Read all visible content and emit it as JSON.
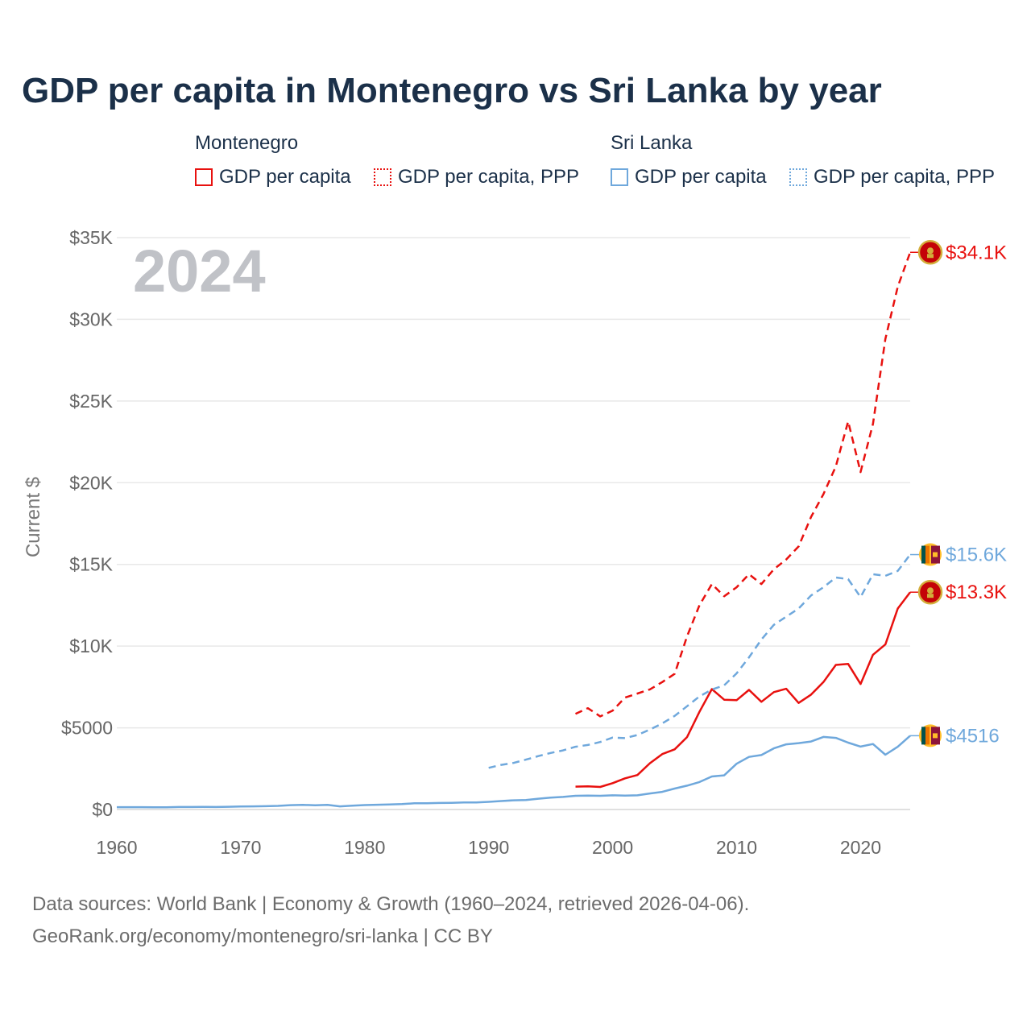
{
  "title": "GDP per capita in Montenegro vs Sri Lanka by year",
  "legend": {
    "groups": [
      {
        "name": "Montenegro",
        "color": "#e8110f",
        "items": [
          {
            "label": "GDP per capita",
            "style": "solid"
          },
          {
            "label": "GDP per capita, PPP",
            "style": "dotted"
          }
        ]
      },
      {
        "name": "Sri Lanka",
        "color": "#6fa8dc",
        "items": [
          {
            "label": "GDP per capita",
            "style": "solid"
          },
          {
            "label": "GDP per capita, PPP",
            "style": "dotted"
          }
        ]
      }
    ]
  },
  "year_watermark": "2024",
  "footer": {
    "line1": "Data sources: World Bank | Economy & Growth (1960–2024, retrieved 2026-04-06).",
    "line2": "GeoRank.org/economy/montenegro/sri-lanka | CC BY"
  },
  "chart_data": {
    "type": "line",
    "title": "GDP per capita in Montenegro vs Sri Lanka by year",
    "xlabel": "",
    "ylabel": "Current $",
    "xlim": [
      1960,
      2024
    ],
    "ylim": [
      0,
      35000
    ],
    "x_ticks": [
      "1960",
      "1970",
      "1980",
      "1990",
      "2000",
      "2010",
      "2020"
    ],
    "x_tick_values": [
      1960,
      1970,
      1980,
      1990,
      2000,
      2010,
      2020
    ],
    "y_ticks": [
      "$0",
      "$5000",
      "$10K",
      "$15K",
      "$20K",
      "$25K",
      "$30K",
      "$35K"
    ],
    "y_tick_values": [
      0,
      5000,
      10000,
      15000,
      20000,
      25000,
      30000,
      35000
    ],
    "grid": true,
    "series": [
      {
        "name": "Montenegro – GDP per capita",
        "country": "Montenegro",
        "metric": "GDP per capita",
        "color": "#e8110f",
        "dash": "solid",
        "end_label": "$13.3K",
        "x": [
          1997,
          1998,
          1999,
          2000,
          2001,
          2002,
          2003,
          2004,
          2005,
          2006,
          2007,
          2008,
          2009,
          2010,
          2011,
          2012,
          2013,
          2014,
          2015,
          2016,
          2017,
          2018,
          2019,
          2020,
          2021,
          2022,
          2023,
          2024
        ],
        "values": [
          1400,
          1420,
          1380,
          1610,
          1910,
          2110,
          2830,
          3390,
          3680,
          4430,
          5980,
          7370,
          6720,
          6690,
          7320,
          6590,
          7180,
          7390,
          6520,
          7030,
          7800,
          8850,
          8910,
          7680,
          9470,
          10100,
          12300,
          13300
        ]
      },
      {
        "name": "Montenegro – GDP per capita, PPP",
        "country": "Montenegro",
        "metric": "GDP per capita, PPP",
        "color": "#e8110f",
        "dash": "dashed",
        "end_label": "$34.1K",
        "x": [
          1997,
          1998,
          1999,
          2000,
          2001,
          2002,
          2003,
          2004,
          2005,
          2006,
          2007,
          2008,
          2009,
          2010,
          2011,
          2012,
          2013,
          2014,
          2015,
          2016,
          2017,
          2018,
          2019,
          2020,
          2021,
          2022,
          2023,
          2024
        ],
        "values": [
          5850,
          6200,
          5700,
          6050,
          6850,
          7100,
          7350,
          7800,
          8300,
          10600,
          12500,
          13800,
          13050,
          13600,
          14400,
          13800,
          14700,
          15300,
          16100,
          17900,
          19300,
          21000,
          23750,
          20650,
          23600,
          28800,
          32000,
          34100
        ]
      },
      {
        "name": "Sri Lanka – GDP per capita",
        "country": "Sri Lanka",
        "metric": "GDP per capita",
        "color": "#6fa8dc",
        "dash": "solid",
        "end_label": "$4516",
        "x": [
          1960,
          1961,
          1962,
          1963,
          1964,
          1965,
          1966,
          1967,
          1968,
          1969,
          1970,
          1971,
          1972,
          1973,
          1974,
          1975,
          1976,
          1977,
          1978,
          1979,
          1980,
          1981,
          1982,
          1983,
          1984,
          1985,
          1986,
          1987,
          1988,
          1989,
          1990,
          1991,
          1992,
          1993,
          1994,
          1995,
          1996,
          1997,
          1998,
          1999,
          2000,
          2001,
          2002,
          2003,
          2004,
          2005,
          2006,
          2007,
          2008,
          2009,
          2010,
          2011,
          2012,
          2013,
          2014,
          2015,
          2016,
          2017,
          2018,
          2019,
          2020,
          2021,
          2022,
          2023,
          2024
        ],
        "values": [
          143,
          144,
          145,
          138,
          140,
          155,
          155,
          159,
          153,
          166,
          184,
          192,
          204,
          222,
          265,
          280,
          260,
          280,
          190,
          230,
          270,
          290,
          310,
          330,
          380,
          380,
          400,
          410,
          430,
          430,
          470,
          520,
          560,
          580,
          660,
          730,
          770,
          840,
          850,
          840,
          870,
          850,
          870,
          980,
          1080,
          1280,
          1460,
          1680,
          2020,
          2090,
          2800,
          3220,
          3330,
          3740,
          3990,
          4060,
          4160,
          4440,
          4380,
          4090,
          3850,
          4010,
          3350,
          3840,
          4516
        ]
      },
      {
        "name": "Sri Lanka – GDP per capita, PPP",
        "country": "Sri Lanka",
        "metric": "GDP per capita, PPP",
        "color": "#6fa8dc",
        "dash": "dashed",
        "end_label": "$15.6K",
        "x": [
          1990,
          1991,
          1992,
          1993,
          1994,
          1995,
          1996,
          1997,
          1998,
          1999,
          2000,
          2001,
          2002,
          2003,
          2004,
          2005,
          2006,
          2007,
          2008,
          2009,
          2010,
          2011,
          2012,
          2013,
          2014,
          2015,
          2016,
          2017,
          2018,
          2019,
          2020,
          2021,
          2022,
          2023,
          2024
        ],
        "values": [
          2550,
          2730,
          2850,
          3050,
          3270,
          3460,
          3620,
          3840,
          3950,
          4130,
          4400,
          4370,
          4560,
          4890,
          5270,
          5730,
          6320,
          6920,
          7340,
          7600,
          8330,
          9310,
          10400,
          11300,
          11800,
          12300,
          13100,
          13600,
          14200,
          14100,
          13000,
          14400,
          14300,
          14600,
          15600
        ]
      }
    ]
  }
}
